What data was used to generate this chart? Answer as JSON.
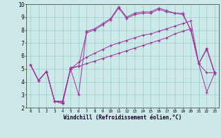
{
  "xlabel": "Windchill (Refroidissement éolien,°C)",
  "bg_color": "#cce8e8",
  "line_color": "#993399",
  "grid_color": "#99cccc",
  "xlim": [
    -0.5,
    23.5
  ],
  "ylim": [
    2,
    10
  ],
  "xticks": [
    0,
    1,
    2,
    3,
    4,
    5,
    6,
    7,
    8,
    9,
    10,
    11,
    12,
    13,
    14,
    15,
    16,
    17,
    18,
    19,
    20,
    21,
    22,
    23
  ],
  "yticks": [
    2,
    3,
    4,
    5,
    6,
    7,
    8,
    9,
    10
  ],
  "line1_x": [
    0,
    1,
    2,
    3,
    4,
    5,
    6,
    7,
    8,
    9,
    10,
    11,
    12,
    13,
    14,
    15,
    16,
    17,
    18,
    19,
    20,
    21,
    22,
    23
  ],
  "line1_y": [
    5.3,
    4.1,
    4.8,
    2.5,
    2.3,
    5.0,
    3.0,
    7.9,
    8.1,
    8.5,
    8.9,
    9.8,
    9.0,
    9.3,
    9.4,
    9.4,
    9.7,
    9.5,
    9.3,
    9.3,
    8.0,
    5.4,
    6.6,
    4.7
  ],
  "line2_x": [
    0,
    1,
    2,
    3,
    4,
    5,
    6,
    7,
    8,
    9,
    10,
    11,
    12,
    13,
    14,
    15,
    16,
    17,
    18,
    19,
    20,
    21,
    22,
    23
  ],
  "line2_y": [
    5.3,
    4.1,
    4.8,
    2.5,
    2.4,
    5.1,
    5.2,
    7.8,
    8.0,
    8.4,
    8.8,
    9.7,
    8.9,
    9.2,
    9.3,
    9.3,
    9.6,
    9.4,
    9.3,
    9.2,
    8.0,
    5.4,
    6.5,
    4.6
  ],
  "line3_x": [
    0,
    1,
    2,
    3,
    4,
    5,
    6,
    7,
    8,
    9,
    10,
    11,
    12,
    13,
    14,
    15,
    16,
    17,
    18,
    19,
    20,
    21,
    22,
    23
  ],
  "line3_y": [
    5.3,
    4.1,
    4.8,
    2.5,
    2.5,
    5.0,
    5.5,
    5.9,
    6.2,
    6.5,
    6.8,
    7.0,
    7.2,
    7.4,
    7.6,
    7.7,
    7.9,
    8.1,
    8.3,
    8.5,
    8.7,
    5.4,
    4.7,
    4.7
  ],
  "line4_x": [
    0,
    1,
    2,
    3,
    4,
    5,
    6,
    7,
    8,
    9,
    10,
    11,
    12,
    13,
    14,
    15,
    16,
    17,
    18,
    19,
    20,
    21,
    22,
    23
  ],
  "line4_y": [
    5.3,
    4.1,
    4.8,
    2.5,
    2.5,
    5.0,
    5.2,
    5.4,
    5.6,
    5.8,
    6.0,
    6.2,
    6.4,
    6.6,
    6.8,
    7.0,
    7.2,
    7.4,
    7.7,
    7.9,
    8.1,
    5.4,
    3.2,
    4.7
  ]
}
